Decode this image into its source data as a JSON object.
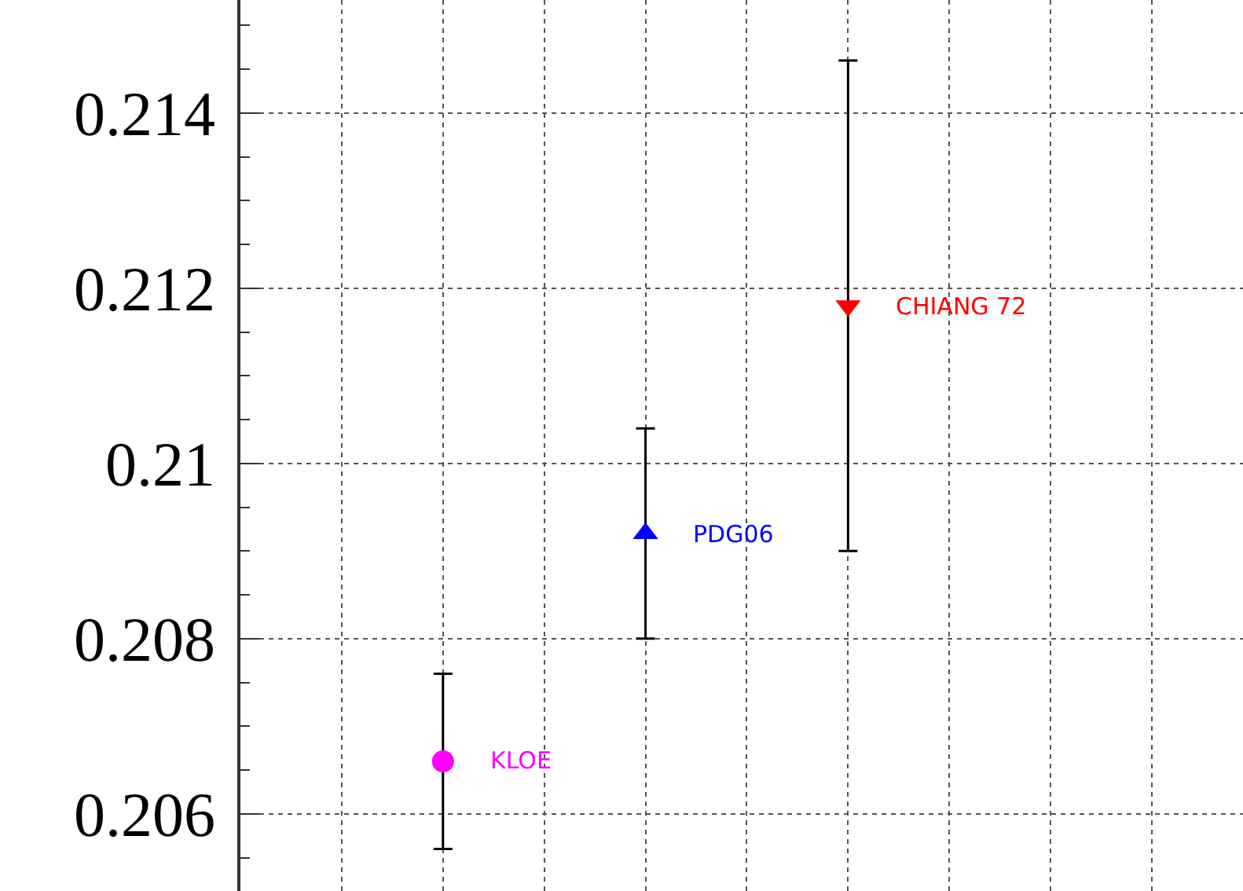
{
  "chart_data": {
    "type": "scatter",
    "categories": [
      null,
      null,
      null,
      null,
      null,
      null,
      null,
      null,
      null
    ],
    "ylim": [
      0.20512,
      0.21529
    ],
    "yticks": [
      0.206,
      0.208,
      0.21,
      0.212,
      0.214
    ],
    "grid": true,
    "tick_labels": "y",
    "series": [
      {
        "name": "KLOE",
        "color": "#ff00ff",
        "marker": "circle",
        "values": [
          null,
          0.2066,
          null,
          null,
          null,
          null,
          null,
          null,
          null
        ],
        "errors": [
          null,
          0.001,
          null,
          null,
          null,
          null,
          null,
          null,
          null
        ]
      },
      {
        "name": "PDG06",
        "color": "#0000ff",
        "marker": "triangle",
        "values": [
          null,
          null,
          null,
          0.2092,
          null,
          null,
          null,
          null,
          null
        ],
        "errors": [
          null,
          null,
          null,
          0.0012,
          null,
          null,
          null,
          null,
          null
        ]
      },
      {
        "name": "CHIANG 72",
        "color": "#ff0000",
        "marker": "triangle-down",
        "values": [
          null,
          null,
          null,
          null,
          null,
          0.2118,
          null,
          null,
          null
        ],
        "errors": [
          null,
          null,
          null,
          null,
          null,
          0.0028,
          null,
          null,
          null
        ]
      }
    ]
  }
}
